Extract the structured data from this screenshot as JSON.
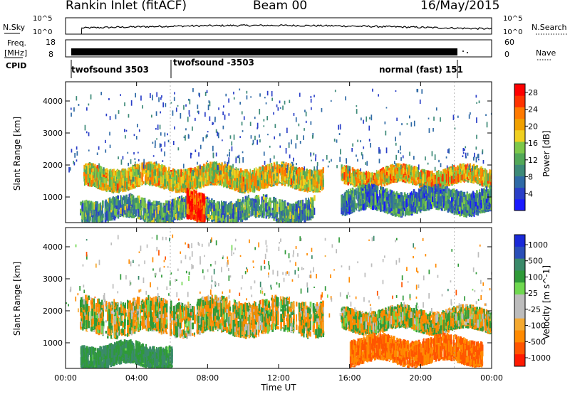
{
  "header": {
    "station": "Rankin Inlet (fitACF)",
    "beam": "Beam 00",
    "date": "16/May/2015"
  },
  "noise_panel": {
    "left_label": "N.Sky",
    "right_label": "N.Search",
    "left_ticks": [
      "10^5",
      "10^0"
    ],
    "right_ticks": [
      "10^5",
      "10^0"
    ]
  },
  "freq_panel": {
    "left_label_1": "Freq.",
    "left_label_2": "[MHz]",
    "right_label": "Nave",
    "left_ticks": [
      "18",
      "8"
    ],
    "right_ticks": [
      "60",
      "0"
    ]
  },
  "cpid": {
    "label": "CPID",
    "segments": [
      {
        "name": "twofsound 3503",
        "start_hour": 0.9
      },
      {
        "name": "twofsound -3503",
        "start_hour": 5.9
      },
      {
        "name": "normal (fast) 151",
        "start_hour": 21.9
      }
    ]
  },
  "colors": {
    "power": [
      "#1a1aff",
      "#2a3fc8",
      "#2f6aa6",
      "#3d8a78",
      "#52a858",
      "#7dc84a",
      "#f0d020",
      "#f0a000",
      "#ff7a00",
      "#ff3300",
      "#ff0000"
    ],
    "velocity": [
      "#ff1a00",
      "#ff5500",
      "#ff8a00",
      "#f4a930",
      "#bcbcbc",
      "#bcbcbc",
      "#6fd850",
      "#2f9a38",
      "#3a8a6a",
      "#2a4fb8",
      "#1a2ad8"
    ]
  },
  "chart_data": [
    {
      "type": "heatmap",
      "title": "Power",
      "ylabel": "Slant Range [km]",
      "xlabel": "Time UT",
      "x_ticks": [
        "00:00",
        "04:00",
        "08:00",
        "12:00",
        "16:00",
        "20:00",
        "00:00"
      ],
      "xlim_hours": [
        0,
        24
      ],
      "y_ticks": [
        1000,
        2000,
        3000,
        4000
      ],
      "ylim_km": [
        200,
        4600
      ],
      "colorbar": {
        "label": "Power [dB]",
        "ticks": [
          4,
          8,
          12,
          16,
          20,
          24,
          28
        ],
        "range": [
          0,
          30
        ]
      },
      "echo_bands": [
        {
          "t": [
            1.0,
            14.5
          ],
          "r": [
            1300,
            1900
          ],
          "value": 18
        },
        {
          "t": [
            15.5,
            24.0
          ],
          "r": [
            1400,
            1850
          ],
          "value": 20
        },
        {
          "t": [
            0.8,
            14.0
          ],
          "r": [
            300,
            900
          ],
          "value": 10
        },
        {
          "t": [
            6.8,
            7.8
          ],
          "r": [
            250,
            1100
          ],
          "value": 28
        },
        {
          "t": [
            15.5,
            24.0
          ],
          "r": [
            550,
            1200
          ],
          "value": 8
        }
      ]
    },
    {
      "type": "heatmap",
      "title": "Velocity",
      "ylabel": "Slant Range [km]",
      "xlabel": "Time UT",
      "x_ticks": [
        "00:00",
        "04:00",
        "08:00",
        "12:00",
        "16:00",
        "20:00",
        "00:00"
      ],
      "xlim_hours": [
        0,
        24
      ],
      "y_ticks": [
        1000,
        2000,
        3000,
        4000
      ],
      "ylim_km": [
        200,
        4600
      ],
      "colorbar": {
        "label": "Velocity [m s^-1]",
        "ticks": [
          "1000",
          "500",
          "100",
          "25",
          "-25",
          "-100",
          "-500",
          "-1000"
        ]
      },
      "echo_bands": [
        {
          "t": [
            0.8,
            14.5
          ],
          "r": [
            1300,
            2300
          ],
          "value": 0
        },
        {
          "t": [
            15.5,
            24.0
          ],
          "r": [
            1400,
            2000
          ],
          "value": 0
        },
        {
          "t": [
            0.8,
            6.0
          ],
          "r": [
            300,
            900
          ],
          "value": 300
        },
        {
          "t": [
            16.0,
            23.5
          ],
          "r": [
            400,
            1100
          ],
          "value": -300
        }
      ]
    }
  ]
}
